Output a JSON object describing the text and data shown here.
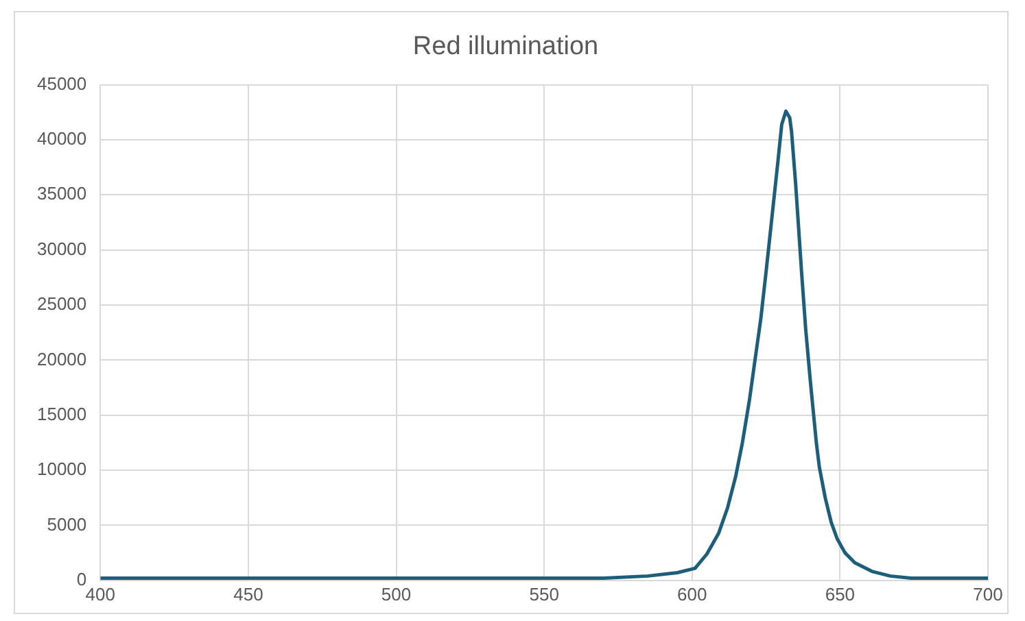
{
  "chart_data": {
    "type": "line",
    "title": "Red illumination",
    "series": [
      {
        "color": "#1d5f7a",
        "x": [
          400,
          425,
          450,
          475,
          500,
          525,
          550,
          570,
          585,
          595,
          601,
          605,
          609,
          612,
          614.7,
          617,
          619.4,
          621,
          623.2,
          625,
          627,
          629,
          630.3,
          631.7,
          633,
          633.6,
          635,
          636,
          637,
          638.4,
          640,
          640.8,
          642,
          643,
          645,
          647,
          649,
          651.7,
          655,
          661,
          667,
          674,
          685,
          700
        ],
        "values": [
          200,
          200,
          200,
          200,
          200,
          200,
          200,
          200,
          400,
          700,
          1100,
          2400,
          4300,
          6600,
          9400,
          12500,
          16400,
          19500,
          23700,
          28000,
          33000,
          38000,
          41400,
          42600,
          42000,
          40800,
          36000,
          32000,
          28000,
          22800,
          18000,
          15800,
          12500,
          10300,
          7500,
          5300,
          3800,
          2500,
          1600,
          800,
          400,
          200,
          200,
          200
        ]
      }
    ],
    "xlim": [
      400,
      700
    ],
    "xticks": [
      400,
      450,
      500,
      550,
      600,
      650,
      700
    ],
    "ylim": [
      0,
      45000
    ],
    "yticks": [
      0,
      5000,
      10000,
      15000,
      20000,
      25000,
      30000,
      35000,
      40000,
      45000
    ],
    "grid": true,
    "marker": "none",
    "line_style": "solid",
    "legend": false
  }
}
